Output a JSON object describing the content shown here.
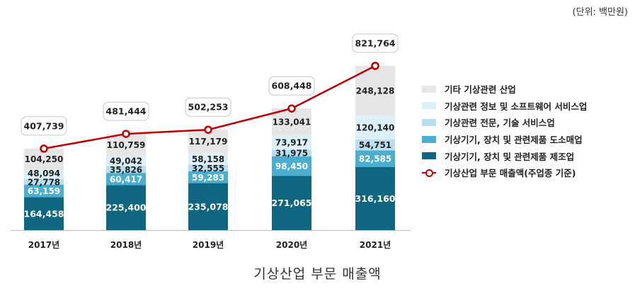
{
  "unit_label": "(단위: 백만원)",
  "caption": "기상산업 부문 매출액",
  "chart_data": {
    "type": "bar",
    "stacked": true,
    "categories": [
      "2017년",
      "2018년",
      "2019년",
      "2020년",
      "2021년"
    ],
    "series": [
      {
        "name": "기상기기, 장치 및 관련제품 제조업",
        "values": [
          164458,
          225400,
          235078,
          271065,
          316160
        ],
        "color": "#0f6680",
        "label_color": "#ffffff"
      },
      {
        "name": "기상기기, 장치 및 관련제품 도소매업",
        "values": [
          63159,
          60417,
          59283,
          98450,
          82585
        ],
        "color": "#4aaed0",
        "label_color": "#ffffff"
      },
      {
        "name": "기상관련 전문, 기술 서비스업",
        "values": [
          27778,
          35826,
          32555,
          31975,
          54751
        ],
        "color": "#b9dfee",
        "label_color": "#222222"
      },
      {
        "name": "기상관련 정보 및 소프트웨어 서비스업",
        "values": [
          48094,
          49042,
          58158,
          73917,
          120140
        ],
        "color": "#dcf0f8",
        "label_color": "#222222"
      },
      {
        "name": "기타 기상관련 산업",
        "values": [
          104250,
          110759,
          117179,
          133041,
          248128
        ],
        "color": "#e6e6e6",
        "label_color": "#222222"
      }
    ],
    "line": {
      "name": "기상산업 부문 매출액(주업종 기준)",
      "values": [
        407739,
        481444,
        502253,
        608448,
        821764
      ],
      "color": "#c00000"
    },
    "bar_labels": [
      [
        "164,458",
        "63,159",
        "27,778",
        "48,094",
        "104,250"
      ],
      [
        "225,400",
        "60,417",
        "35,826",
        "49,042",
        "110,759"
      ],
      [
        "235,078",
        "59,283",
        "32,555",
        "58,158",
        "117,179"
      ],
      [
        "271,065",
        "98,450",
        "31,975",
        "73,917",
        "133,041"
      ],
      [
        "316,160",
        "82,585",
        "54,751",
        "120,140",
        "248,128"
      ]
    ],
    "line_labels": [
      "407,739",
      "481,444",
      "502,253",
      "608,448",
      "821,764"
    ],
    "legend_position": "right",
    "grid": false
  }
}
